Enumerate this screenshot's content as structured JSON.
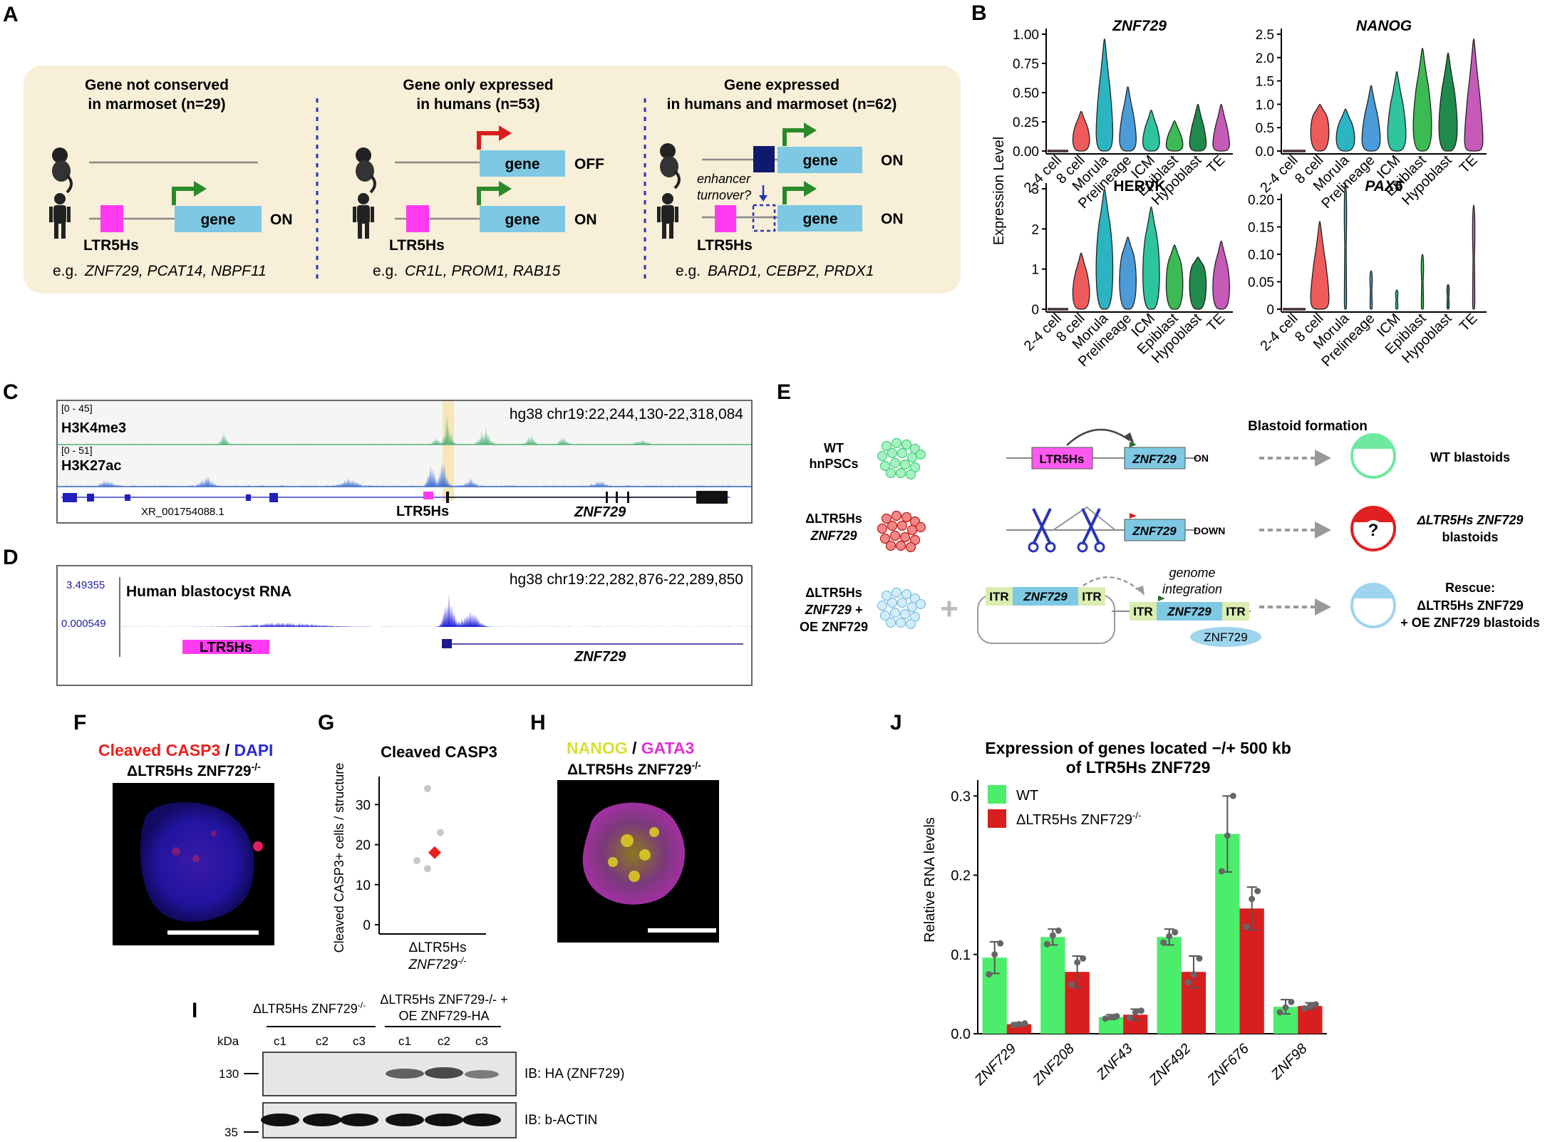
{
  "panels": {
    "A": {
      "letter": "A",
      "col1": {
        "title1": "Gene not conserved",
        "title2": "in marmoset (n=29)",
        "gene": "gene",
        "state": "ON",
        "ltr": "LTR5Hs",
        "eg_prefix": "e.g. ",
        "eg_genes": "ZNF729, PCAT14, NBPF11"
      },
      "col2": {
        "title1": "Gene only expressed",
        "title2": "in humans (n=53)",
        "gene_top": "gene",
        "state_top": "OFF",
        "gene": "gene",
        "state": "ON",
        "ltr": "LTR5Hs",
        "eg_prefix": "e.g. ",
        "eg_genes": "CR1L, PROM1, RAB15"
      },
      "col3": {
        "title1": "Gene expressed",
        "title2": "in humans and marmoset (n=62)",
        "gene_top": "gene",
        "state_top": "ON",
        "gene": "gene",
        "state": "ON",
        "ltr": "LTR5Hs",
        "enh1": "enhancer",
        "enh2": "turnover?",
        "eg_prefix": "e.g. ",
        "eg_genes": "BARD1, CEBPZ, PRDX1"
      }
    },
    "B": {
      "letter": "B",
      "ylabel": "Expression Level"
    },
    "C": {
      "letter": "C",
      "coords": "hg38 chr19:22,244,130-22,318,084",
      "track1_range": "[0 - 45]",
      "track1": "H3K4me3",
      "track2_range": "[0 - 51]",
      "track2": "H3K27ac",
      "xr": "XR_001754088.1",
      "ltr": "LTR5Hs",
      "gene": "ZNF729"
    },
    "D": {
      "letter": "D",
      "coords": "hg38 chr19:22,282,876-22,289,850",
      "ymax": "3.49355",
      "ymin": "0.000549",
      "track": "Human blastocyst RNA",
      "ltr": "LTR5Hs",
      "gene": "ZNF729"
    },
    "E": {
      "letter": "E",
      "blastoid_formation": "Blastoid formation",
      "row1": {
        "label1": "WT",
        "label2": "hnPSCs",
        "ltr": "LTR5Hs",
        "gene": "ZNF729",
        "state": "ON",
        "result": "WT blastoids"
      },
      "row2": {
        "label1": "ΔLTR5Hs",
        "label2": "ZNF729",
        "gene": "ZNF729",
        "state": "DOWN",
        "q": "?",
        "result1": "ΔLTR5Hs ZNF729",
        "result2": "blastoids"
      },
      "row3": {
        "label1": "ΔLTR5Hs",
        "label2": "ZNF729 +",
        "label3": "OE ZNF729",
        "itr": "ITR",
        "gene": "ZNF729",
        "gi1": "genome",
        "gi2": "integration",
        "protein": "ZNF729",
        "result1": "Rescue:",
        "result2": "ΔLTR5Hs ZNF729",
        "result3": "+ OE ZNF729 blastoids"
      }
    },
    "F": {
      "letter": "F",
      "stain1": "Cleaved CASP3",
      "sep": " / ",
      "stain2": "DAPI",
      "sample": "ΔLTR5Hs ZNF729",
      "sup": "-/-"
    },
    "G": {
      "letter": "G",
      "title": "Cleaved CASP3",
      "ylabel": "Cleaved CASP3+ cells / structure",
      "xlabel1": "ΔLTR5Hs",
      "xlabel2": "ZNF729",
      "sup": "-/-"
    },
    "H": {
      "letter": "H",
      "stain1": "NANOG",
      "sep": " / ",
      "stain2": "GATA3",
      "sample": "ΔLTR5Hs ZNF729",
      "sup": "-/-"
    },
    "I": {
      "letter": "I",
      "group1": "ΔLTR5Hs ZNF729",
      "group1_sup": "-/-",
      "group2a": "ΔLTR5Hs ZNF729-/- +",
      "group2b": "OE ZNF729-HA",
      "kda": "kDa",
      "m130": "130",
      "m35": "35",
      "lanes": [
        "c1",
        "c2",
        "c3",
        "c1",
        "c2",
        "c3"
      ],
      "blot1": "IB: HA (ZNF729)",
      "blot2": "IB: b-ACTIN"
    },
    "J": {
      "letter": "J",
      "ylabel": "Relative RNA levels"
    }
  },
  "chart_data": [
    {
      "type": "violin",
      "title": "ZNF729",
      "categories": [
        "2-4 cell",
        "8 cell",
        "Morula",
        "Prelineage",
        "ICM",
        "Epiblast",
        "Hypoblast",
        "TE"
      ],
      "yticks": [
        "0.00",
        "0.25",
        "0.50",
        "0.75",
        "1.00"
      ],
      "ylim": [
        0,
        1.0
      ],
      "median": [
        0.0,
        0.12,
        0.14,
        0.1,
        0.09,
        0.06,
        0.06,
        0.05
      ],
      "max": [
        0.0,
        0.34,
        0.96,
        0.55,
        0.35,
        0.26,
        0.4,
        0.4
      ],
      "colors": [
        "#f06560",
        "#ef5a5a",
        "#2bb5c0",
        "#4a9bd8",
        "#2ec4a0",
        "#3cba54",
        "#1f8a4c",
        "#c65ab8"
      ]
    },
    {
      "type": "violin",
      "title": "NANOG",
      "categories": [
        "2-4 cell",
        "8 cell",
        "Morula",
        "Prelineage",
        "ICM",
        "Epiblast",
        "Hypoblast",
        "TE"
      ],
      "yticks": [
        "0.0",
        "0.5",
        "1.0",
        "1.5",
        "2.0",
        "2.5"
      ],
      "ylim": [
        0,
        2.5
      ],
      "median": [
        0.0,
        0.6,
        0.35,
        0.25,
        0.4,
        0.6,
        0.6,
        0.05
      ],
      "max": [
        0.0,
        1.0,
        0.9,
        1.4,
        1.7,
        2.2,
        2.1,
        2.4
      ],
      "colors": [
        "#f06560",
        "#ef5a5a",
        "#2bb5c0",
        "#4a9bd8",
        "#2ec4a0",
        "#3cba54",
        "#1f8a4c",
        "#c65ab8"
      ]
    },
    {
      "type": "violin",
      "title": "HERVK",
      "categories": [
        "2-4 cell",
        "8 cell",
        "Morula",
        "Prelineage",
        "ICM",
        "Epiblast",
        "Hypoblast",
        "TE"
      ],
      "yticks": [
        "0",
        "1",
        "2",
        "3"
      ],
      "ylim": [
        0,
        3
      ],
      "median": [
        0.0,
        0.5,
        1.3,
        1.0,
        1.2,
        0.9,
        0.9,
        0.7
      ],
      "max": [
        0.0,
        1.4,
        3.0,
        1.8,
        2.55,
        1.6,
        1.3,
        1.7
      ],
      "colors": [
        "#f06560",
        "#ef5a5a",
        "#2bb5c0",
        "#4a9bd8",
        "#2ec4a0",
        "#3cba54",
        "#1f8a4c",
        "#c65ab8"
      ]
    },
    {
      "type": "violin",
      "title": "PAX6",
      "categories": [
        "2-4 cell",
        "8 cell",
        "Morula",
        "Prelineage",
        "ICM",
        "Epiblast",
        "Hypoblast",
        "TE"
      ],
      "yticks": [
        "0",
        "0.05",
        "0.10",
        "0.15",
        "0.20"
      ],
      "ylim": [
        0,
        0.2
      ],
      "median": [
        0.0,
        0.01,
        0.002,
        0.002,
        0.002,
        0.002,
        0.002,
        0.002
      ],
      "max": [
        0.0,
        0.16,
        0.23,
        0.07,
        0.035,
        0.1,
        0.045,
        0.19
      ],
      "colors": [
        "#f06560",
        "#ef5a5a",
        "#2bb5c0",
        "#4a9bd8",
        "#2ec4a0",
        "#3cba54",
        "#1f8a4c",
        "#c65ab8"
      ]
    },
    {
      "type": "scatter",
      "title": "Cleaved CASP3",
      "ylabel": "Cleaved CASP3+ cells / structure",
      "yticks": [
        "0",
        "10",
        "20",
        "30"
      ],
      "ylim": [
        0,
        37
      ],
      "points": [
        34,
        23,
        16,
        14
      ],
      "mean": 18,
      "point_color": "#c8c8c8",
      "mean_color": "#e8201c"
    },
    {
      "type": "bar",
      "title": "Expression of genes located −/+ 500 kb",
      "title2": "of LTR5Hs ZNF729",
      "categories": [
        "ZNF729",
        "ZNF208",
        "ZNF43",
        "ZNF492",
        "ZNF676",
        "ZNF98"
      ],
      "ylabel": "Relative RNA levels",
      "yticks": [
        "0.0",
        "0.1",
        "0.2",
        "0.3"
      ],
      "ylim": [
        0,
        0.32
      ],
      "series": [
        {
          "name": "WT",
          "color": "#4bed6b",
          "values": [
            0.096,
            0.122,
            0.021,
            0.122,
            0.252,
            0.034
          ],
          "errors": [
            0.02,
            0.01,
            0.003,
            0.01,
            0.048,
            0.009
          ],
          "points": [
            [
              0.075,
              0.1,
              0.114
            ],
            [
              0.113,
              0.124,
              0.13
            ],
            [
              0.019,
              0.021,
              0.022
            ],
            [
              0.115,
              0.123,
              0.128
            ],
            [
              0.205,
              0.25,
              0.3
            ],
            [
              0.027,
              0.033,
              0.04
            ]
          ]
        },
        {
          "name": "ΔLTR5Hs ZNF729",
          "sup": "-/-",
          "color": "#d81f1f",
          "values": [
            0.012,
            0.078,
            0.024,
            0.078,
            0.158,
            0.035
          ],
          "errors": [
            0.002,
            0.02,
            0.007,
            0.02,
            0.027,
            0.004
          ],
          "points": [
            [
              0.011,
              0.012,
              0.013
            ],
            [
              0.062,
              0.09,
              0.095
            ],
            [
              0.02,
              0.027,
              0.029
            ],
            [
              0.065,
              0.075,
              0.095
            ],
            [
              0.135,
              0.17,
              0.18
            ],
            [
              0.032,
              0.035,
              0.037
            ]
          ]
        }
      ]
    }
  ]
}
